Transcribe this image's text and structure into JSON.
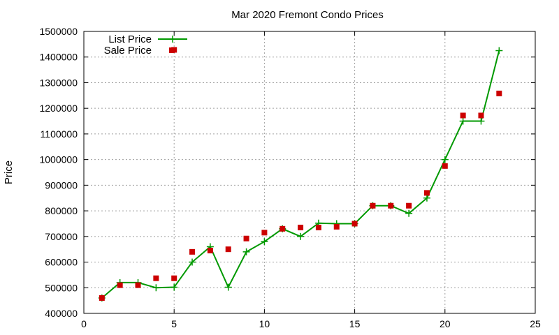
{
  "chart_data": {
    "type": "line",
    "title": "Mar 2020 Fremont Condo Prices",
    "xlabel": "",
    "ylabel": "Price",
    "xlim": [
      0,
      25
    ],
    "ylim": [
      400000,
      1500000
    ],
    "xticks": [
      "0",
      "5",
      "10",
      "15",
      "20",
      "25"
    ],
    "yticks": [
      "400000",
      "500000",
      "600000",
      "700000",
      "800000",
      "900000",
      "1000000",
      "1100000",
      "1200000",
      "1300000",
      "1400000",
      "1500000"
    ],
    "grid": true,
    "legend_position": "top-left",
    "series": [
      {
        "name": "List Price",
        "style": "line+cross",
        "color": "#009900",
        "x": [
          1,
          2,
          3,
          4,
          5,
          6,
          7,
          8,
          9,
          10,
          11,
          12,
          13,
          14,
          15,
          16,
          17,
          18,
          19,
          20,
          21,
          22,
          23
        ],
        "y": [
          460000,
          520000,
          520000,
          500000,
          502000,
          600000,
          660000,
          502000,
          640000,
          680000,
          730000,
          700000,
          752000,
          750000,
          750000,
          820000,
          820000,
          790000,
          850000,
          1000000,
          1150000,
          1150000,
          1425000
        ]
      },
      {
        "name": "Sale Price",
        "style": "square",
        "color": "#cc0000",
        "x": [
          1,
          2,
          3,
          4,
          5,
          5,
          6,
          7,
          8,
          9,
          10,
          11,
          12,
          13,
          14,
          15,
          16,
          17,
          18,
          19,
          20,
          21,
          22,
          23
        ],
        "y": [
          460000,
          510000,
          510000,
          537000,
          537000,
          1428000,
          640000,
          645000,
          650000,
          692000,
          715000,
          730000,
          735000,
          735000,
          738000,
          750000,
          820000,
          820000,
          820000,
          870000,
          975000,
          1172000,
          1172000,
          1258000
        ]
      }
    ]
  }
}
